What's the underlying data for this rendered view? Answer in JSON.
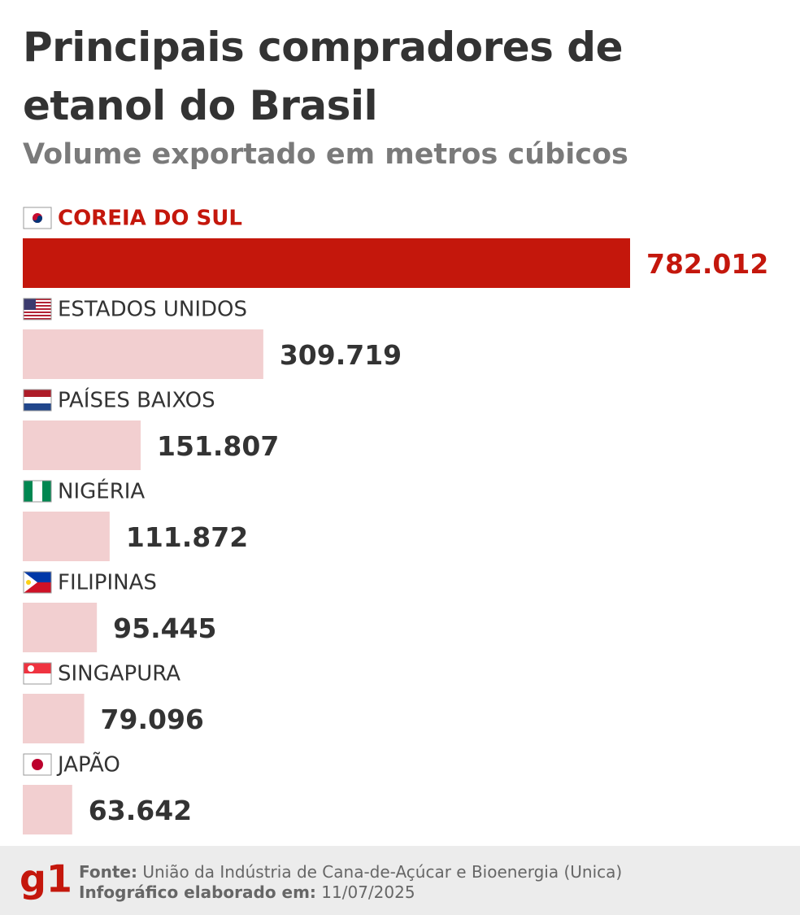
{
  "chart_data": {
    "type": "hbar",
    "title": "Principais compradores de etanol do Brasil",
    "subtitle": "Volume exportado em metros cúbicos",
    "categories": [
      "COREIA DO SUL",
      "ESTADOS UNIDOS",
      "PAÍSES BAIXOS",
      "NIGÉRIA",
      "FILIPINAS",
      "SINGAPURA",
      "JAPÃO"
    ],
    "values": [
      782012,
      309719,
      151807,
      111872,
      95445,
      79096,
      63642
    ],
    "value_labels": [
      "782.012",
      "309.719",
      "151.807",
      "111.872",
      "95.445",
      "79.096",
      "63.642"
    ],
    "colors": [
      "#c4170c",
      "#f2cfd0",
      "#f2cfd0",
      "#f2cfd0",
      "#f2cfd0",
      "#f2cfd0",
      "#f2cfd0"
    ],
    "label_colors": [
      "#c4170c",
      "#333333",
      "#333333",
      "#333333",
      "#333333",
      "#333333",
      "#333333"
    ]
  },
  "footer": {
    "logo": "g1",
    "source_label": "Fonte:",
    "source": "União da Indústria de Cana-de-Açúcar e Bioenergia (Unica)",
    "date_label": "Infográfico elaborado em:",
    "date": "11/07/2025"
  }
}
